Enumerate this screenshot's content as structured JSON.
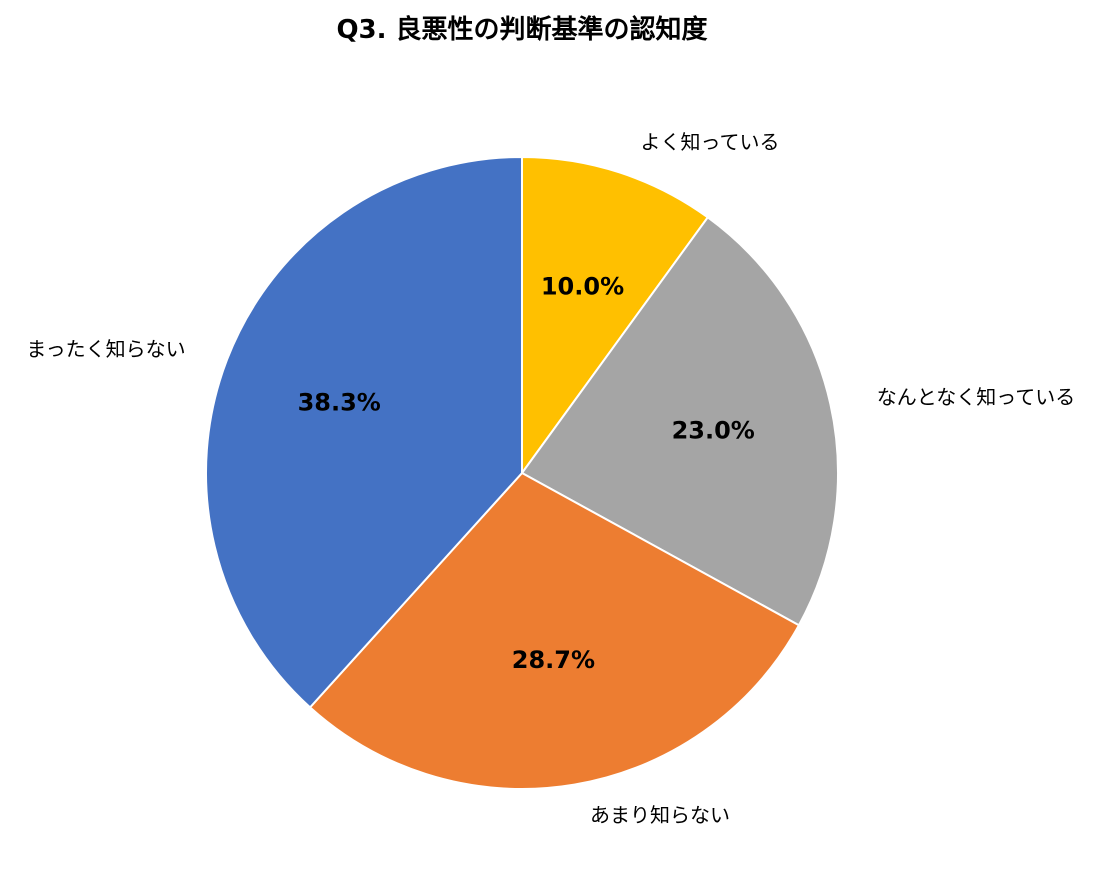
{
  "chart_data": {
    "type": "pie",
    "title": "Q3. 良悪性の判断基準の認知度",
    "categories": [
      "よく知っている",
      "なんとなく知っている",
      "あまり知らない",
      "まったく知らない"
    ],
    "values": [
      10.0,
      23.0,
      28.7,
      38.3
    ],
    "value_labels": [
      "10.0%",
      "23.0%",
      "28.7%",
      "38.3%"
    ],
    "colors": [
      "#FFC000",
      "#A5A5A5",
      "#ED7D31",
      "#4472C4"
    ],
    "start": "12 o'clock",
    "direction": "clockwise",
    "legend": "none (category labels outside slices)"
  }
}
